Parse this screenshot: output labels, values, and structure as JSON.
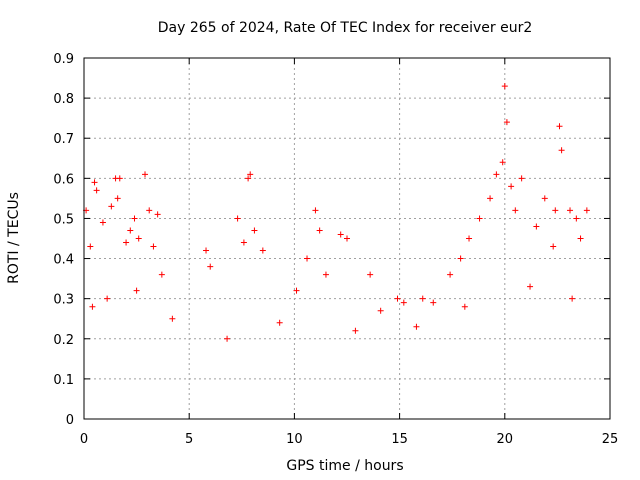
{
  "chart_data": {
    "type": "scatter",
    "title": "Day 265 of 2024, Rate Of TEC Index for receiver eur2",
    "xlabel": "GPS time / hours",
    "ylabel": "ROTI / TECUs",
    "xlim": [
      0,
      25
    ],
    "ylim": [
      0,
      0.9
    ],
    "xticks": [
      "0",
      "5",
      "10",
      "15",
      "20",
      "25"
    ],
    "yticks": [
      "0",
      "0.1",
      "0.2",
      "0.3",
      "0.4",
      "0.5",
      "0.6",
      "0.7",
      "0.8",
      "0.9"
    ],
    "grid": true,
    "marker": "+",
    "color": "#ff0000",
    "series": [
      {
        "x": [
          0.1,
          0.3,
          0.5,
          0.6,
          0.9,
          1.3,
          1.5,
          1.6,
          1.7,
          2.0,
          2.2,
          2.4,
          2.6,
          2.9,
          3.1,
          3.3,
          3.5,
          3.7,
          5.8,
          6.0,
          7.3,
          7.6,
          7.8,
          7.9,
          8.1,
          8.5,
          10.1,
          10.6,
          11.0,
          11.2,
          11.5,
          12.2,
          12.5,
          13.6,
          14.1,
          14.9,
          15.2,
          16.1,
          16.6,
          17.4,
          17.9,
          18.3,
          18.8,
          19.3,
          19.6,
          19.9,
          20.0,
          20.1,
          20.3,
          20.5,
          20.8,
          21.5,
          21.9,
          22.3,
          22.4,
          22.6,
          22.7,
          23.1,
          23.4,
          23.6,
          23.9,
          0.4,
          1.1,
          2.5,
          4.2,
          6.8,
          9.3,
          12.9,
          15.8,
          18.1,
          21.2,
          23.2
        ],
        "y": [
          0.52,
          0.43,
          0.59,
          0.57,
          0.49,
          0.53,
          0.6,
          0.55,
          0.6,
          0.44,
          0.47,
          0.5,
          0.45,
          0.61,
          0.52,
          0.43,
          0.51,
          0.36,
          0.42,
          0.38,
          0.5,
          0.44,
          0.6,
          0.61,
          0.47,
          0.42,
          0.32,
          0.4,
          0.52,
          0.47,
          0.36,
          0.46,
          0.45,
          0.36,
          0.27,
          0.3,
          0.29,
          0.3,
          0.29,
          0.36,
          0.4,
          0.45,
          0.5,
          0.55,
          0.61,
          0.64,
          0.83,
          0.74,
          0.58,
          0.52,
          0.6,
          0.48,
          0.55,
          0.43,
          0.52,
          0.73,
          0.67,
          0.52,
          0.5,
          0.45,
          0.52,
          0.28,
          0.3,
          0.32,
          0.25,
          0.2,
          0.24,
          0.22,
          0.23,
          0.28,
          0.33,
          0.3
        ]
      }
    ]
  }
}
